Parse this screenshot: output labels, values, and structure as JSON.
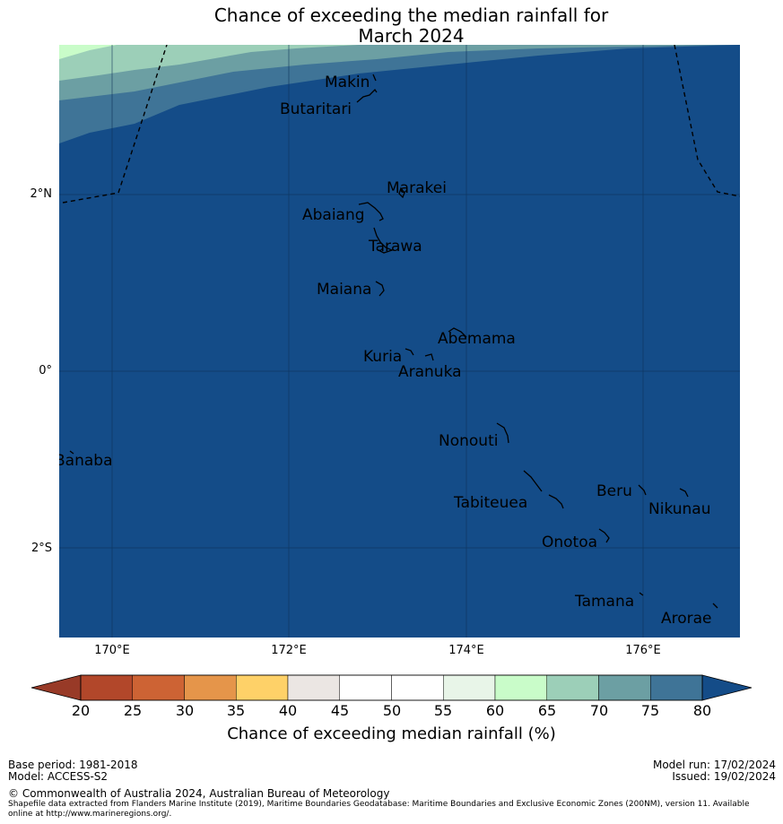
{
  "title": {
    "line1": "Chance of exceeding the median rainfall for",
    "line2": "March 2024"
  },
  "axes": {
    "x_ticks": [
      "170°E",
      "172°E",
      "174°E",
      "176°E"
    ],
    "y_ticks": [
      "2°N",
      "0°",
      "2°S"
    ]
  },
  "islands": [
    {
      "name": "Makin"
    },
    {
      "name": "Butaritari"
    },
    {
      "name": "Marakei"
    },
    {
      "name": "Abaiang"
    },
    {
      "name": "Tarawa"
    },
    {
      "name": "Maiana"
    },
    {
      "name": "Abemama"
    },
    {
      "name": "Kuria"
    },
    {
      "name": "Aranuka"
    },
    {
      "name": "Nonouti"
    },
    {
      "name": "Banaba"
    },
    {
      "name": "Tabiteuea"
    },
    {
      "name": "Beru"
    },
    {
      "name": "Nikunau"
    },
    {
      "name": "Onotoa"
    },
    {
      "name": "Tamana"
    },
    {
      "name": "Arorae"
    }
  ],
  "colorbar": {
    "ticks": [
      "20",
      "25",
      "30",
      "35",
      "40",
      "45",
      "50",
      "55",
      "60",
      "65",
      "70",
      "75",
      "80"
    ],
    "colors": [
      "#b2472a",
      "#cd6334",
      "#e5954a",
      "#fed168",
      "#ebe6e3",
      "#ffffff",
      "#ffffff",
      "#e8f5e8",
      "#c9fcc9",
      "#9ccfb8",
      "#6c9fa3",
      "#3f7497",
      "#144c88"
    ],
    "under_color": "#983a27",
    "over_color": "#144c88",
    "label": "Chance of exceeding median rainfall (%)"
  },
  "footer": {
    "base_period": "Base period: 1981-2018",
    "model": "Model: ACCESS-S2",
    "model_run": "Model run: 17/02/2024",
    "issued": "Issued: 19/02/2024",
    "copyright": "© Commonwealth of Australia 2024, Australian Bureau of Meteorology",
    "shapefile_line1": "Shapefile data extracted from Flanders Marine Institute (2019), Maritime Boundaries Geodatabase: Maritime Boundaries and Exclusive Economic Zones (200NM), version 11. Available",
    "shapefile_line2": "online at http://www.marineregions.org/."
  }
}
